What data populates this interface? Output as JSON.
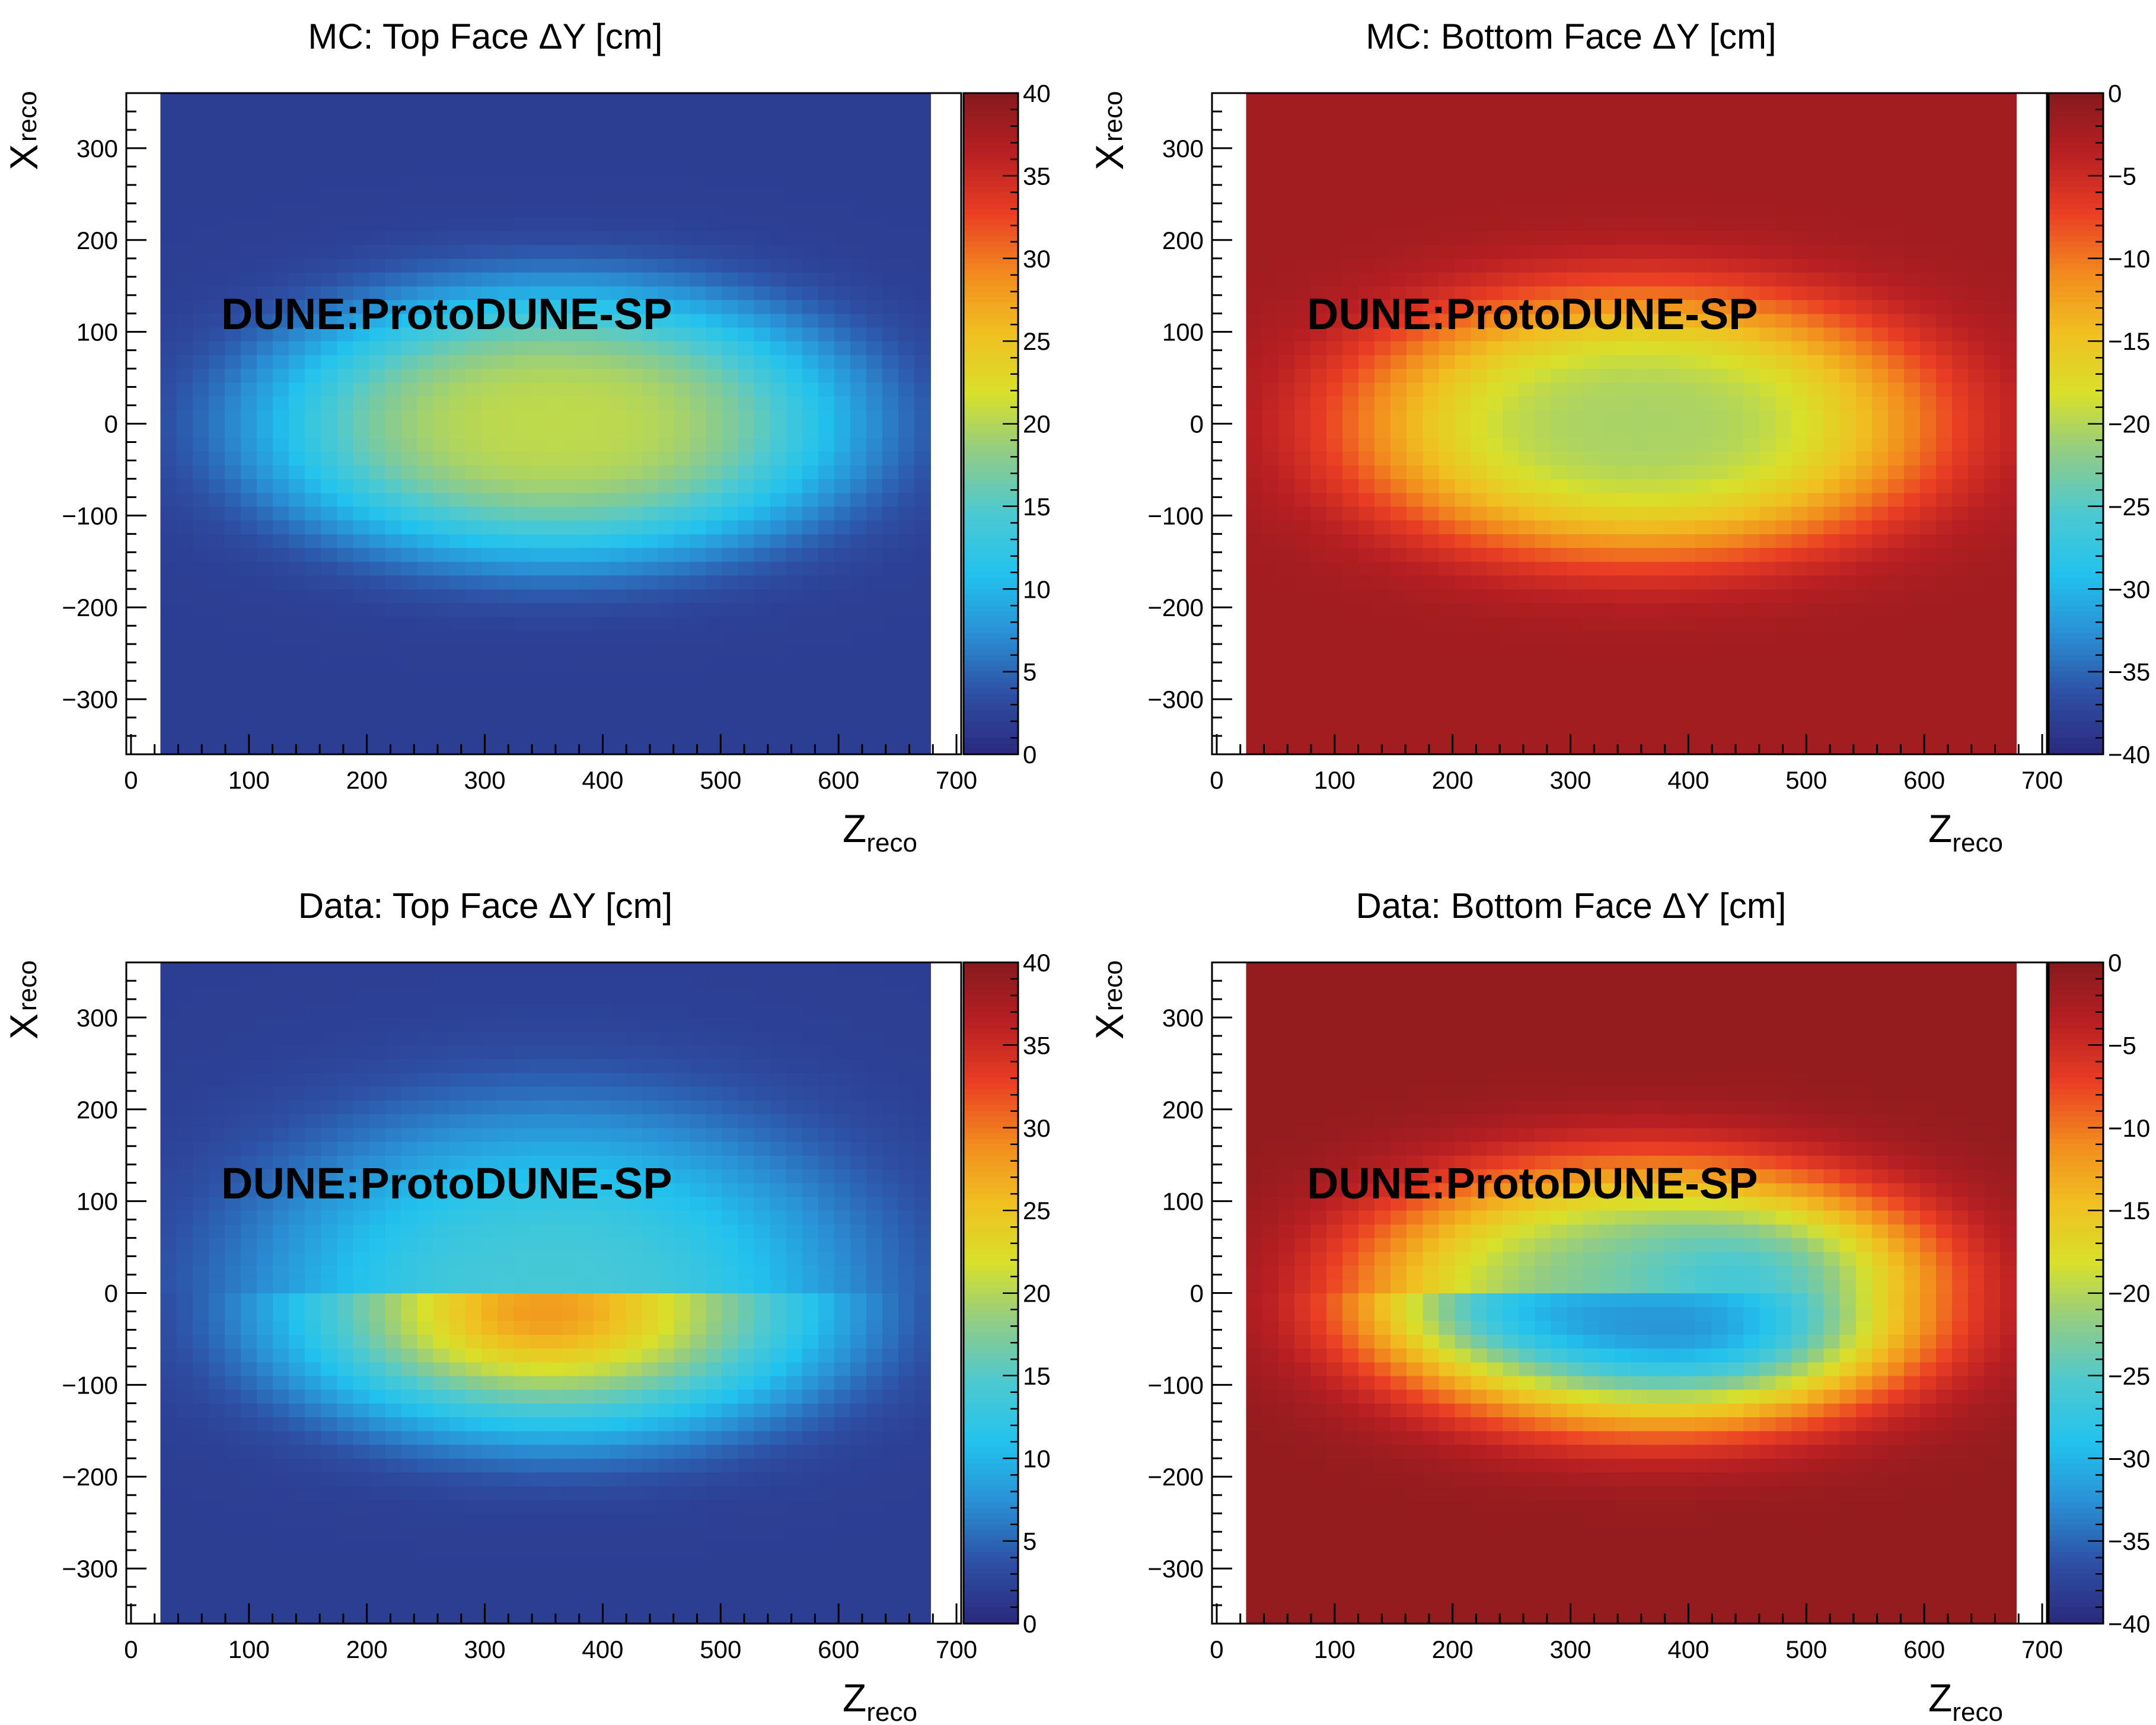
{
  "chart_data": [
    {
      "type": "heatmap",
      "title": "MC:  Top Face ΔY [cm]",
      "xlabel_main": "Z",
      "xlabel_sub": "reco",
      "ylabel_main": "X",
      "ylabel_sub": "reco",
      "xlim": [
        -4,
        704
      ],
      "ylim": [
        -360,
        360
      ],
      "data_x_range": [
        25,
        678
      ],
      "x_ticks": [
        0,
        100,
        200,
        300,
        400,
        500,
        600,
        700
      ],
      "y_ticks": [
        300,
        200,
        100,
        0,
        -100,
        -200,
        -300
      ],
      "y_tick_labels": [
        "300",
        "200",
        "100",
        "0",
        "−100",
        "−200",
        "−300"
      ],
      "zlim": [
        0,
        40
      ],
      "colorbar_ticks": [
        0,
        5,
        10,
        15,
        20,
        25,
        30,
        35,
        40
      ],
      "colorbar_labels": [
        "0",
        "5",
        "10",
        "15",
        "20",
        "25",
        "30",
        "35",
        "40"
      ],
      "watermark": "DUNE:ProtoDUNE-SP",
      "model": "mc",
      "field_description": "smooth elliptical bump centered at Z~360, X~0; peak ~20, edges ~2"
    },
    {
      "type": "heatmap",
      "title": "MC:  Bottom Face ΔY [cm]",
      "xlabel_main": "Z",
      "xlabel_sub": "reco",
      "ylabel_main": "X",
      "ylabel_sub": "reco",
      "xlim": [
        -4,
        704
      ],
      "ylim": [
        -360,
        360
      ],
      "data_x_range": [
        25,
        678
      ],
      "x_ticks": [
        0,
        100,
        200,
        300,
        400,
        500,
        600,
        700
      ],
      "y_ticks": [
        300,
        200,
        100,
        0,
        -100,
        -200,
        -300
      ],
      "y_tick_labels": [
        "300",
        "200",
        "100",
        "0",
        "−100",
        "−200",
        "−300"
      ],
      "zlim": [
        -40,
        0
      ],
      "colorbar_ticks": [
        -40,
        -35,
        -30,
        -25,
        -20,
        -15,
        -10,
        -5,
        0
      ],
      "colorbar_labels": [
        "−40",
        "−35",
        "−30",
        "−25",
        "−20",
        "−15",
        "−10",
        "−5",
        "0"
      ],
      "watermark": "DUNE:ProtoDUNE-SP",
      "model": "mc",
      "field_description": "smooth elliptical dip centered at Z~360, X~0; minimum ~-18, edges ~-1"
    },
    {
      "type": "heatmap",
      "title": "Data:  Top Face ΔY [cm]",
      "xlabel_main": "Z",
      "xlabel_sub": "reco",
      "ylabel_main": "X",
      "ylabel_sub": "reco",
      "xlim": [
        -4,
        704
      ],
      "ylim": [
        -360,
        360
      ],
      "data_x_range": [
        25,
        678
      ],
      "x_ticks": [
        0,
        100,
        200,
        300,
        400,
        500,
        600,
        700
      ],
      "y_ticks": [
        300,
        200,
        100,
        0,
        -100,
        -200,
        -300
      ],
      "y_tick_labels": [
        "300",
        "200",
        "100",
        "0",
        "−100",
        "−200",
        "−300"
      ],
      "zlim": [
        0,
        40
      ],
      "colorbar_ticks": [
        0,
        5,
        10,
        15,
        20,
        25,
        30,
        35,
        40
      ],
      "colorbar_labels": [
        "0",
        "5",
        "10",
        "15",
        "20",
        "25",
        "30",
        "35",
        "40"
      ],
      "watermark": "DUNE:ProtoDUNE-SP",
      "model": "data_top",
      "field_description": "discontinuity at X=0; X<0 side peaks ~30 near Z~340, X~-20; X>0 side ~10-15"
    },
    {
      "type": "heatmap",
      "title": "Data:  Bottom Face ΔY [cm]",
      "xlabel_main": "Z",
      "xlabel_sub": "reco",
      "ylabel_main": "X",
      "ylabel_sub": "reco",
      "xlim": [
        -4,
        704
      ],
      "ylim": [
        -360,
        360
      ],
      "data_x_range": [
        25,
        678
      ],
      "x_ticks": [
        0,
        100,
        200,
        300,
        400,
        500,
        600,
        700
      ],
      "y_ticks": [
        300,
        200,
        100,
        0,
        -100,
        -200,
        -300
      ],
      "y_tick_labels": [
        "300",
        "200",
        "100",
        "0",
        "−100",
        "−200",
        "−300"
      ],
      "zlim": [
        -40,
        0
      ],
      "colorbar_ticks": [
        -40,
        -35,
        -30,
        -25,
        -20,
        -15,
        -10,
        -5,
        0
      ],
      "colorbar_labels": [
        "−40",
        "−35",
        "−30",
        "−25",
        "−20",
        "−15",
        "−10",
        "−5",
        "0"
      ],
      "watermark": "DUNE:ProtoDUNE-SP",
      "model": "data_bottom",
      "field_description": "discontinuity at X=0; X<0 side minimum ~-37 near Z~420, X~-40; X>0 side ~-25"
    }
  ],
  "colormap": [
    "#2b2a7d",
    "#2d4fa4",
    "#2a8fd4",
    "#22c2ee",
    "#4cc9d2",
    "#8fcc88",
    "#d8e02a",
    "#f0c020",
    "#f28a1e",
    "#ea3e24",
    "#b81f23",
    "#861a1c"
  ]
}
